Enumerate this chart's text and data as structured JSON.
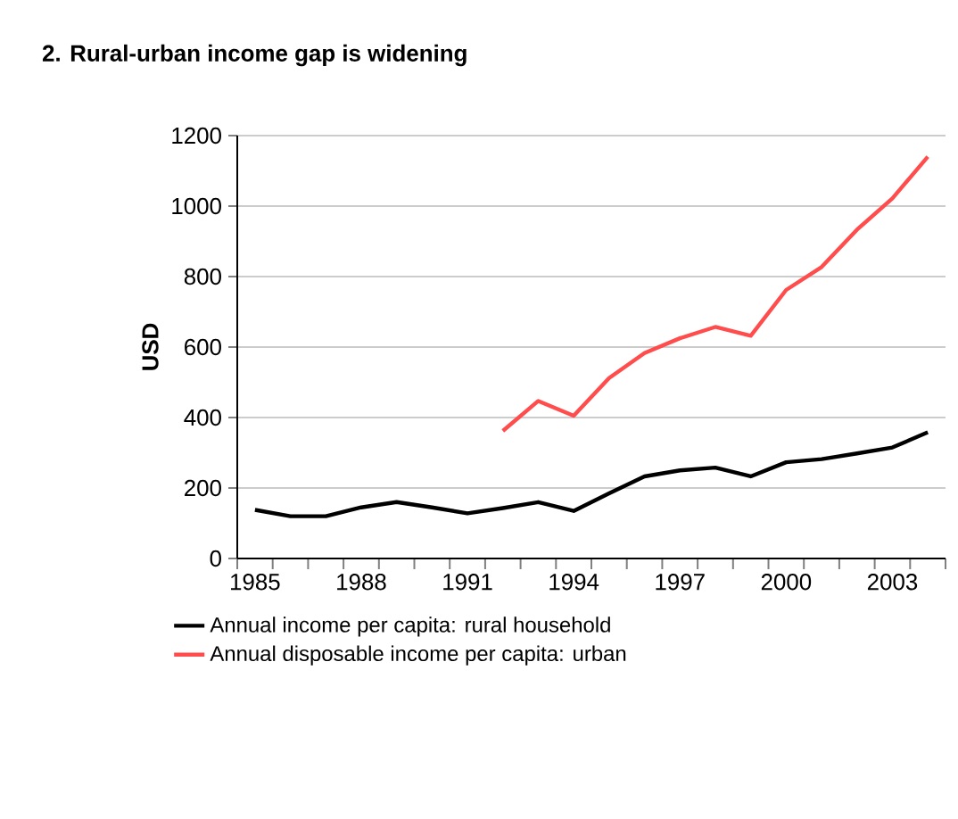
{
  "chart_data": {
    "type": "line",
    "title": "2. Rural-urban income gap is widening",
    "ylabel": "USD",
    "categories": [
      "1985",
      null,
      null,
      "1988",
      null,
      null,
      "1991",
      null,
      null,
      "1994",
      null,
      null,
      "1997",
      null,
      null,
      "2000",
      null,
      null,
      "2003",
      null
    ],
    "series": [
      {
        "name": "Annual income per capita: rural household",
        "color": "#000000",
        "values": [
          138,
          120,
          120,
          145,
          160,
          145,
          128,
          143,
          160,
          135,
          185,
          233,
          250,
          258,
          233,
          273,
          282,
          298,
          315,
          358
        ]
      },
      {
        "name": "Annual disposable income per capita: urban",
        "color": "#ff4d4d",
        "values": [
          null,
          null,
          null,
          null,
          null,
          null,
          null,
          362,
          447,
          405,
          512,
          583,
          625,
          657,
          632,
          762,
          827,
          933,
          1022,
          1140
        ]
      }
    ],
    "ylim": [
      0,
      1200
    ],
    "yticks": [
      0,
      200,
      400,
      600,
      800,
      1000,
      1200
    ],
    "grid": "y",
    "legend": "bottom",
    "line_style": "solid",
    "marker": "none"
  }
}
